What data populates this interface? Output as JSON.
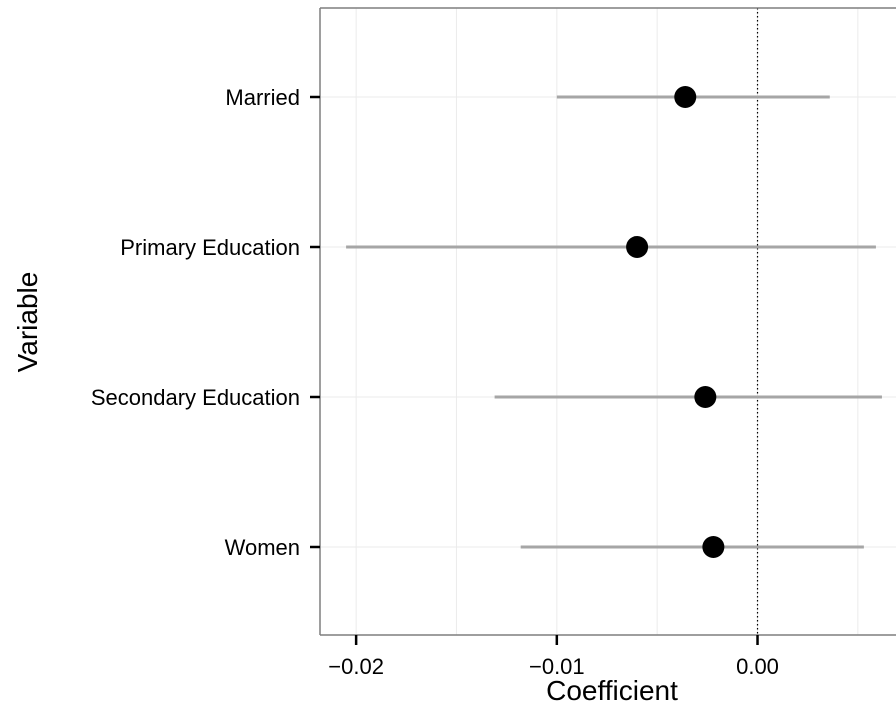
{
  "chart_data": {
    "type": "scatter",
    "subtype": "coefficient-plot",
    "title": "",
    "xlabel": "Coefficient",
    "ylabel": "Variable",
    "xlim": [
      -0.0218,
      0.0069
    ],
    "x_ticks": [
      -0.02,
      -0.01,
      0.0
    ],
    "x_tick_labels": [
      "−0.02",
      "−0.01",
      "0.00"
    ],
    "categories": [
      "Married",
      "Primary Education",
      "Secondary Education",
      "Women"
    ],
    "estimates": [
      -0.0036,
      -0.006,
      -0.0026,
      -0.0022
    ],
    "ci_low": [
      -0.01,
      -0.0205,
      -0.0131,
      -0.0118
    ],
    "ci_high": [
      0.0036,
      0.0059,
      0.0062,
      0.0053
    ],
    "reference_line": 0,
    "grid": true,
    "colors": {
      "point": "#000000",
      "interval": "#a6a6a6",
      "grid": "#ebebeb",
      "panel_border": "#7f7f7f",
      "reference_line": "#000000"
    }
  }
}
